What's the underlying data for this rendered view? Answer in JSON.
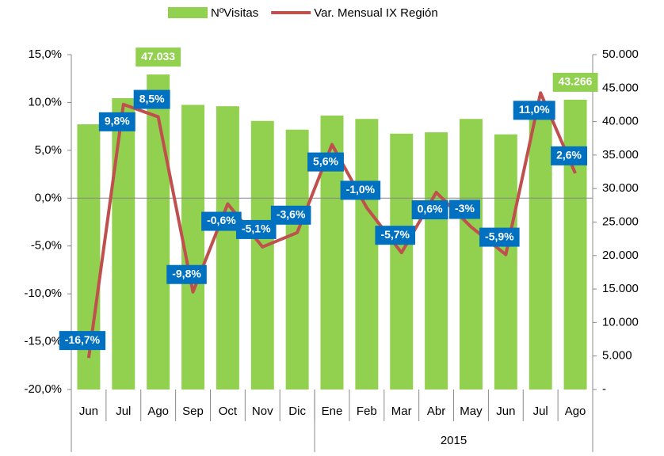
{
  "chart_data": {
    "type": "bar_line",
    "legend": "top",
    "categories": [
      "Jun",
      "Jul",
      "Ago",
      "Sep",
      "Oct",
      "Nov",
      "Dic",
      "Ene",
      "Feb",
      "Mar",
      "Abr",
      "May",
      "Jun",
      "Jul",
      "Ago"
    ],
    "x_group_label": "2015",
    "series": [
      {
        "name": "NºVisitas",
        "type": "bar",
        "axis": "y2",
        "color": "#92d050",
        "label_color": "#92d050",
        "values": [
          39600,
          43500,
          47033,
          42500,
          42300,
          40100,
          38800,
          40900,
          40400,
          38200,
          38400,
          40400,
          38100,
          42400,
          43266
        ],
        "value_labels": [
          null,
          null,
          "47.033",
          null,
          null,
          null,
          null,
          null,
          null,
          null,
          null,
          null,
          null,
          null,
          "43.266"
        ]
      },
      {
        "name": "Var. Mensual IX Región",
        "type": "line",
        "axis": "y",
        "color": "#c0504d",
        "label_color": "#0070c0",
        "values": [
          -16.7,
          9.8,
          8.5,
          -9.8,
          -0.6,
          -5.1,
          -3.6,
          5.6,
          -1.0,
          -5.7,
          0.6,
          -3,
          -5.9,
          11.0,
          2.6
        ],
        "value_labels": [
          "-16,7%",
          "9,8%",
          "8,5%",
          "-9,8%",
          "-0,6%",
          "-5,1%",
          "-3,6%",
          "5,6%",
          "-1,0%",
          "-5,7%",
          "0,6%",
          "-3%",
          "-5,9%",
          "11,0%",
          "2,6%"
        ]
      }
    ],
    "ylim": [
      -20,
      15
    ],
    "yticks": [
      {
        "value": -20,
        "label": "-20,0%"
      },
      {
        "value": -15,
        "label": "-15,0%"
      },
      {
        "value": -10,
        "label": "-10,0%"
      },
      {
        "value": -5,
        "label": "-5,0%"
      },
      {
        "value": 0,
        "label": "0,0%"
      },
      {
        "value": 5,
        "label": "5,0%"
      },
      {
        "value": 10,
        "label": "10,0%"
      },
      {
        "value": 15,
        "label": "15,0%"
      }
    ],
    "y2lim": [
      0,
      50000
    ],
    "y2ticks": [
      {
        "value": 0,
        "label": "-"
      },
      {
        "value": 5000,
        "label": "5.000"
      },
      {
        "value": 10000,
        "label": "10.000"
      },
      {
        "value": 15000,
        "label": "15.000"
      },
      {
        "value": 20000,
        "label": "20.000"
      },
      {
        "value": 25000,
        "label": "25.000"
      },
      {
        "value": 30000,
        "label": "30.000"
      },
      {
        "value": 35000,
        "label": "35.000"
      },
      {
        "value": 40000,
        "label": "40.000"
      },
      {
        "value": 45000,
        "label": "45.000"
      },
      {
        "value": 50000,
        "label": "50.000"
      }
    ]
  }
}
